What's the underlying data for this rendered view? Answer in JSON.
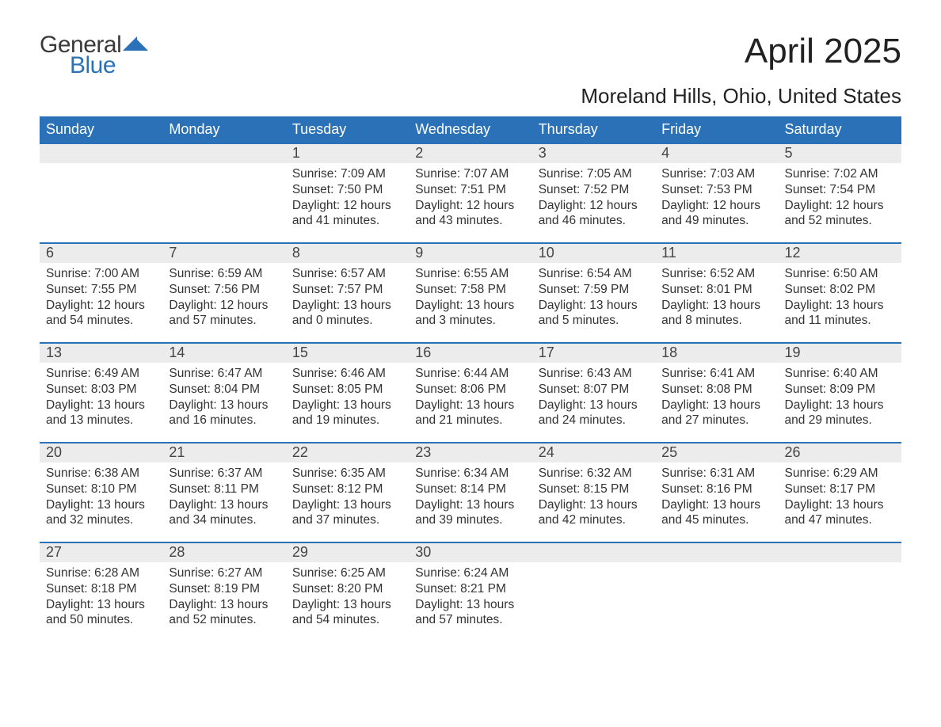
{
  "brand": {
    "text1": "General",
    "text2": "Blue",
    "accent_color": "#2a71b8",
    "text_color": "#3a3a3a"
  },
  "title": "April 2025",
  "location": "Moreland Hills, Ohio, United States",
  "colors": {
    "header_bg": "#2a71b8",
    "header_text": "#ffffff",
    "daynum_bg": "#ececec",
    "week_border": "#2a71b8",
    "body_text": "#333333",
    "background": "#ffffff"
  },
  "fonts": {
    "title_size_pt": 33,
    "location_size_pt": 20,
    "header_size_pt": 14,
    "daynum_size_pt": 14,
    "body_size_pt": 12
  },
  "day_headers": [
    "Sunday",
    "Monday",
    "Tuesday",
    "Wednesday",
    "Thursday",
    "Friday",
    "Saturday"
  ],
  "weeks": [
    [
      {
        "empty": true
      },
      {
        "empty": true
      },
      {
        "num": "1",
        "sunrise": "Sunrise: 7:09 AM",
        "sunset": "Sunset: 7:50 PM",
        "daylight": "Daylight: 12 hours and 41 minutes."
      },
      {
        "num": "2",
        "sunrise": "Sunrise: 7:07 AM",
        "sunset": "Sunset: 7:51 PM",
        "daylight": "Daylight: 12 hours and 43 minutes."
      },
      {
        "num": "3",
        "sunrise": "Sunrise: 7:05 AM",
        "sunset": "Sunset: 7:52 PM",
        "daylight": "Daylight: 12 hours and 46 minutes."
      },
      {
        "num": "4",
        "sunrise": "Sunrise: 7:03 AM",
        "sunset": "Sunset: 7:53 PM",
        "daylight": "Daylight: 12 hours and 49 minutes."
      },
      {
        "num": "5",
        "sunrise": "Sunrise: 7:02 AM",
        "sunset": "Sunset: 7:54 PM",
        "daylight": "Daylight: 12 hours and 52 minutes."
      }
    ],
    [
      {
        "num": "6",
        "sunrise": "Sunrise: 7:00 AM",
        "sunset": "Sunset: 7:55 PM",
        "daylight": "Daylight: 12 hours and 54 minutes."
      },
      {
        "num": "7",
        "sunrise": "Sunrise: 6:59 AM",
        "sunset": "Sunset: 7:56 PM",
        "daylight": "Daylight: 12 hours and 57 minutes."
      },
      {
        "num": "8",
        "sunrise": "Sunrise: 6:57 AM",
        "sunset": "Sunset: 7:57 PM",
        "daylight": "Daylight: 13 hours and 0 minutes."
      },
      {
        "num": "9",
        "sunrise": "Sunrise: 6:55 AM",
        "sunset": "Sunset: 7:58 PM",
        "daylight": "Daylight: 13 hours and 3 minutes."
      },
      {
        "num": "10",
        "sunrise": "Sunrise: 6:54 AM",
        "sunset": "Sunset: 7:59 PM",
        "daylight": "Daylight: 13 hours and 5 minutes."
      },
      {
        "num": "11",
        "sunrise": "Sunrise: 6:52 AM",
        "sunset": "Sunset: 8:01 PM",
        "daylight": "Daylight: 13 hours and 8 minutes."
      },
      {
        "num": "12",
        "sunrise": "Sunrise: 6:50 AM",
        "sunset": "Sunset: 8:02 PM",
        "daylight": "Daylight: 13 hours and 11 minutes."
      }
    ],
    [
      {
        "num": "13",
        "sunrise": "Sunrise: 6:49 AM",
        "sunset": "Sunset: 8:03 PM",
        "daylight": "Daylight: 13 hours and 13 minutes."
      },
      {
        "num": "14",
        "sunrise": "Sunrise: 6:47 AM",
        "sunset": "Sunset: 8:04 PM",
        "daylight": "Daylight: 13 hours and 16 minutes."
      },
      {
        "num": "15",
        "sunrise": "Sunrise: 6:46 AM",
        "sunset": "Sunset: 8:05 PM",
        "daylight": "Daylight: 13 hours and 19 minutes."
      },
      {
        "num": "16",
        "sunrise": "Sunrise: 6:44 AM",
        "sunset": "Sunset: 8:06 PM",
        "daylight": "Daylight: 13 hours and 21 minutes."
      },
      {
        "num": "17",
        "sunrise": "Sunrise: 6:43 AM",
        "sunset": "Sunset: 8:07 PM",
        "daylight": "Daylight: 13 hours and 24 minutes."
      },
      {
        "num": "18",
        "sunrise": "Sunrise: 6:41 AM",
        "sunset": "Sunset: 8:08 PM",
        "daylight": "Daylight: 13 hours and 27 minutes."
      },
      {
        "num": "19",
        "sunrise": "Sunrise: 6:40 AM",
        "sunset": "Sunset: 8:09 PM",
        "daylight": "Daylight: 13 hours and 29 minutes."
      }
    ],
    [
      {
        "num": "20",
        "sunrise": "Sunrise: 6:38 AM",
        "sunset": "Sunset: 8:10 PM",
        "daylight": "Daylight: 13 hours and 32 minutes."
      },
      {
        "num": "21",
        "sunrise": "Sunrise: 6:37 AM",
        "sunset": "Sunset: 8:11 PM",
        "daylight": "Daylight: 13 hours and 34 minutes."
      },
      {
        "num": "22",
        "sunrise": "Sunrise: 6:35 AM",
        "sunset": "Sunset: 8:12 PM",
        "daylight": "Daylight: 13 hours and 37 minutes."
      },
      {
        "num": "23",
        "sunrise": "Sunrise: 6:34 AM",
        "sunset": "Sunset: 8:14 PM",
        "daylight": "Daylight: 13 hours and 39 minutes."
      },
      {
        "num": "24",
        "sunrise": "Sunrise: 6:32 AM",
        "sunset": "Sunset: 8:15 PM",
        "daylight": "Daylight: 13 hours and 42 minutes."
      },
      {
        "num": "25",
        "sunrise": "Sunrise: 6:31 AM",
        "sunset": "Sunset: 8:16 PM",
        "daylight": "Daylight: 13 hours and 45 minutes."
      },
      {
        "num": "26",
        "sunrise": "Sunrise: 6:29 AM",
        "sunset": "Sunset: 8:17 PM",
        "daylight": "Daylight: 13 hours and 47 minutes."
      }
    ],
    [
      {
        "num": "27",
        "sunrise": "Sunrise: 6:28 AM",
        "sunset": "Sunset: 8:18 PM",
        "daylight": "Daylight: 13 hours and 50 minutes."
      },
      {
        "num": "28",
        "sunrise": "Sunrise: 6:27 AM",
        "sunset": "Sunset: 8:19 PM",
        "daylight": "Daylight: 13 hours and 52 minutes."
      },
      {
        "num": "29",
        "sunrise": "Sunrise: 6:25 AM",
        "sunset": "Sunset: 8:20 PM",
        "daylight": "Daylight: 13 hours and 54 minutes."
      },
      {
        "num": "30",
        "sunrise": "Sunrise: 6:24 AM",
        "sunset": "Sunset: 8:21 PM",
        "daylight": "Daylight: 13 hours and 57 minutes."
      },
      {
        "empty": true
      },
      {
        "empty": true
      },
      {
        "empty": true
      }
    ]
  ]
}
